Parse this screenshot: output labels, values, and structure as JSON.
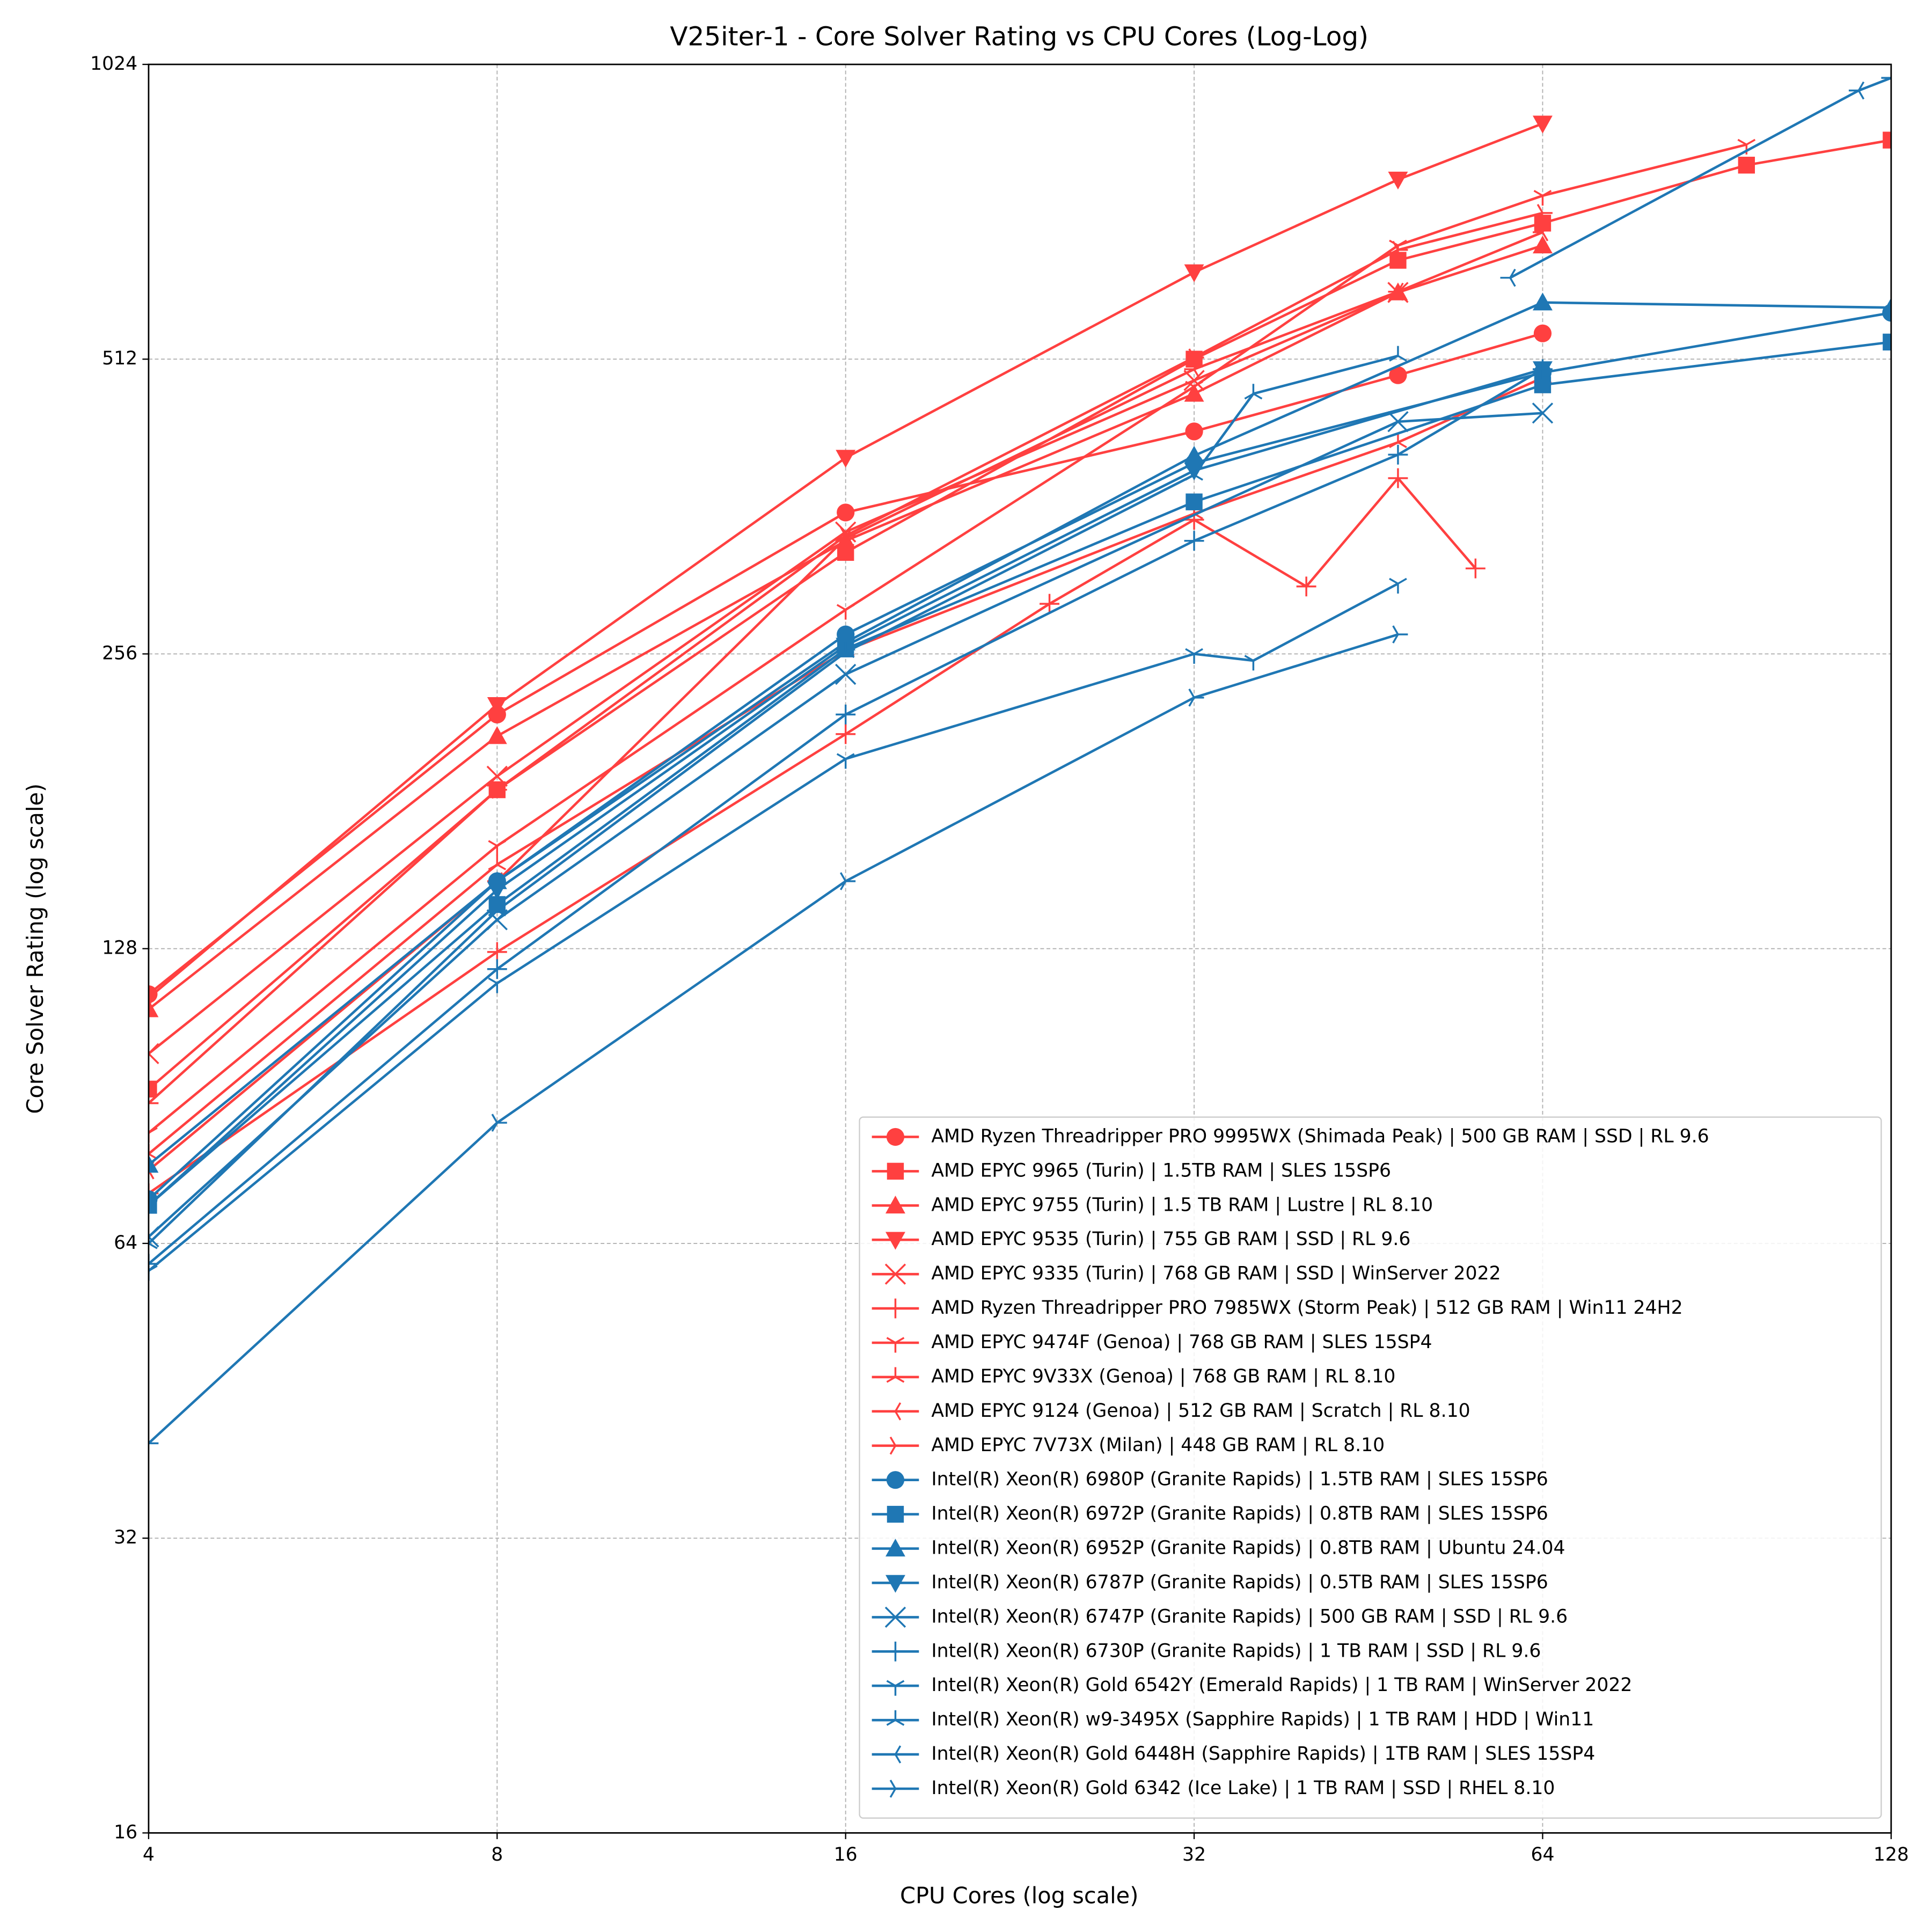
{
  "chart_data": {
    "type": "line",
    "title": "V25iter-1 - Core Solver Rating vs CPU Cores (Log-Log)",
    "x_label": "CPU Cores (log scale)",
    "y_label": "Core Solver Rating (log scale)",
    "xscale": "log",
    "yscale": "log",
    "log_base": 2,
    "xlim": [
      4,
      128
    ],
    "ylim": [
      16,
      1024
    ],
    "xticks": [
      4,
      8,
      16,
      32,
      64,
      128
    ],
    "yticks": [
      16,
      32,
      64,
      128,
      256,
      512,
      1024
    ],
    "grid": true,
    "legend": "lower right",
    "series": [
      {
        "name": "AMD Ryzen Threadripper PRO 9995WX (Shimada Peak) | 500 GB RAM | SSD | RL 9.6",
        "color": "#ff4040",
        "marker": "circle",
        "x": [
          4,
          8,
          16,
          32,
          48,
          64
        ],
        "values": [
          115,
          222,
          357,
          432,
          493,
          544
        ]
      },
      {
        "name": "AMD EPYC 9965 (Turin) | 1.5TB RAM | SLES 15SP6",
        "color": "#ff4040",
        "marker": "square",
        "x": [
          4,
          8,
          16,
          32,
          48,
          64,
          96,
          128
        ],
        "values": [
          92,
          186,
          325,
          512,
          646,
          705,
          808,
          857
        ]
      },
      {
        "name": "AMD EPYC 9755 (Turin) | 1.5 TB RAM | Lustre | RL 8.10",
        "color": "#ff4040",
        "marker": "triangle-up",
        "x": [
          4,
          8,
          16,
          32,
          48,
          64
        ],
        "values": [
          111,
          211,
          334,
          472,
          599,
          669
        ]
      },
      {
        "name": "AMD EPYC 9535 (Turin) | 755 GB RAM | SSD | RL 9.6",
        "color": "#ff4040",
        "marker": "triangle-down",
        "x": [
          4,
          8,
          16,
          32,
          48,
          64
        ],
        "values": [
          114,
          227,
          406,
          628,
          781,
          891
        ]
      },
      {
        "name": "AMD EPYC 9335 (Turin) | 768 GB RAM | SSD | WinServer 2022",
        "color": "#ff4040",
        "marker": "x",
        "x": [
          4,
          8,
          16,
          32,
          48
        ],
        "values": [
          100,
          192,
          341,
          487,
          599
        ]
      },
      {
        "name": "AMD Ryzen Threadripper PRO 7985WX (Storm Peak) | 512 GB RAM | Win11 24H2",
        "color": "#ff4040",
        "marker": "plus",
        "x": [
          4,
          8,
          16,
          24,
          32,
          40,
          48,
          56
        ],
        "values": [
          72,
          127,
          212,
          288,
          351,
          300,
          387,
          313
        ]
      },
      {
        "name": "AMD EPYC 9474F (Genoa) | 768 GB RAM | SLES 15SP4",
        "color": "#ff4040",
        "marker": "tri-down",
        "x": [
          4,
          8,
          16,
          32,
          48,
          64,
          96
        ],
        "values": [
          83,
          163,
          284,
          480,
          669,
          752,
          848
        ]
      },
      {
        "name": "AMD EPYC 9V33X (Genoa) | 768 GB RAM | RL 8.10",
        "color": "#ff4040",
        "marker": "tri-up",
        "x": [
          4,
          8,
          16,
          32,
          48,
          64
        ],
        "values": [
          79,
          156,
          258,
          356,
          421,
          490
        ]
      },
      {
        "name": "AMD EPYC 9124 (Genoa) | 512 GB RAM | Scratch | RL 8.10",
        "color": "#ff4040",
        "marker": "tri-left",
        "x": [
          4,
          8,
          16,
          32,
          48,
          64
        ],
        "values": [
          76,
          150,
          336,
          500,
          600,
          690
        ]
      },
      {
        "name": "AMD EPYC 7V73X (Milan) | 448 GB RAM | RL 8.10",
        "color": "#ff4040",
        "marker": "tri-right",
        "x": [
          4,
          8,
          16,
          32,
          48,
          64
        ],
        "values": [
          89,
          186,
          338,
          514,
          662,
          722
        ]
      },
      {
        "name": "Intel(R) Xeon(R) 6980P (Granite Rapids) | 1.5TB RAM | SLES 15SP6",
        "color": "#1f77b4",
        "marker": "circle",
        "x": [
          4,
          8,
          16,
          32,
          64,
          128
        ],
        "values": [
          71,
          150,
          268,
          401,
          496,
          571
        ]
      },
      {
        "name": "Intel(R) Xeon(R) 6972P (Granite Rapids) | 0.8TB RAM | SLES 15SP6",
        "color": "#1f77b4",
        "marker": "square",
        "x": [
          4,
          8,
          16,
          32,
          64,
          128
        ],
        "values": [
          70,
          142,
          259,
          366,
          482,
          533
        ]
      },
      {
        "name": "Intel(R) Xeon(R) 6952P (Granite Rapids) | 0.8TB RAM | Ubuntu 24.04",
        "color": "#1f77b4",
        "marker": "triangle-up",
        "x": [
          4,
          8,
          16,
          32,
          64,
          128
        ],
        "values": [
          77,
          150,
          263,
          408,
          585,
          578
        ]
      },
      {
        "name": "Intel(R) Xeon(R) 6787P (Granite Rapids) | 0.5TB RAM | SLES 15SP6",
        "color": "#1f77b4",
        "marker": "triangle-down",
        "x": [
          4,
          8,
          16,
          32,
          64
        ],
        "values": [
          70,
          147,
          261,
          394,
          500
        ]
      },
      {
        "name": "Intel(R) Xeon(R) 6747P (Granite Rapids) | 500 GB RAM | SSD | RL 9.6",
        "color": "#1f77b4",
        "marker": "x",
        "x": [
          4,
          8,
          16,
          48,
          64
        ],
        "values": [
          65,
          137,
          244,
          442,
          451
        ]
      },
      {
        "name": "Intel(R) Xeon(R) 6730P (Granite Rapids) | 1 TB RAM | SSD | RL 9.6",
        "color": "#1f77b4",
        "marker": "plus",
        "x": [
          4,
          8,
          16,
          32,
          48,
          64
        ],
        "values": [
          61,
          122,
          222,
          334,
          409,
          500
        ]
      },
      {
        "name": "Intel(R) Xeon(R) Gold 6542Y (Emerald Rapids) | 1 TB RAM | WinServer 2022",
        "color": "#1f77b4",
        "marker": "tri-down",
        "x": [
          4,
          8,
          16,
          32,
          36,
          48
        ],
        "values": [
          60,
          118,
          200,
          256,
          252,
          302
        ]
      },
      {
        "name": "Intel(R) Xeon(R) w9-3495X (Sapphire Rapids) | 1 TB RAM | HDD | Win11",
        "color": "#1f77b4",
        "marker": "tri-up",
        "x": [
          4,
          8,
          16,
          32,
          36,
          48
        ],
        "values": [
          64,
          140,
          257,
          390,
          472,
          516
        ]
      },
      {
        "name": "Intel(R) Xeon(R) Gold 6448H (Sapphire Rapids) | 1TB RAM | SLES 15SP4",
        "color": "#1f77b4",
        "marker": "tri-left",
        "x": [
          60,
          120,
          128
        ],
        "values": [
          620,
          963,
          992
        ]
      },
      {
        "name": "Intel(R) Xeon(R) Gold 6342 (Ice Lake) | 1 TB RAM | SSD | RHEL 8.10",
        "color": "#1f77b4",
        "marker": "tri-right",
        "x": [
          4,
          8,
          16,
          32,
          48
        ],
        "values": [
          40,
          85,
          150,
          231,
          268
        ]
      }
    ]
  }
}
